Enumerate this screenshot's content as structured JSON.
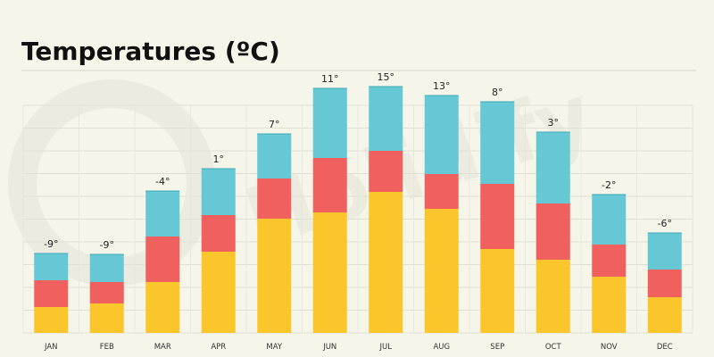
{
  "chart_data": {
    "type": "bar",
    "stacked": true,
    "title": "Temperatures (ºC)",
    "categories": [
      "JAN",
      "FEB",
      "MAR",
      "APR",
      "MAY",
      "JUN",
      "JUL",
      "AUG",
      "SEP",
      "OCT",
      "NOV",
      "DEC"
    ],
    "labels": [
      "-9°",
      "-9°",
      "-4°",
      "1°",
      "7°",
      "11°",
      "15°",
      "13°",
      "8°",
      "3°",
      "-2°",
      "-6°"
    ],
    "series": [
      {
        "color": "#fbc62c",
        "values": [
          29,
          33,
          57,
          91,
          128,
          135,
          158,
          139,
          94,
          82,
          63,
          40
        ]
      },
      {
        "color": "#f0605f",
        "values": [
          30,
          24,
          51,
          41,
          45,
          61,
          46,
          39,
          73,
          63,
          36,
          31
        ]
      },
      {
        "color": "#65c8d4",
        "values": [
          30,
          31,
          51,
          52,
          50,
          78,
          72,
          88,
          92,
          80,
          56,
          41
        ]
      }
    ],
    "legend": "none",
    "grid": true
  }
}
